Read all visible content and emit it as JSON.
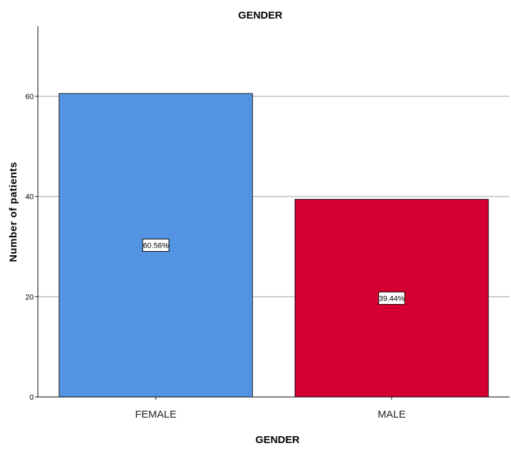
{
  "chart_data": {
    "type": "bar",
    "title": "GENDER",
    "xlabel": "GENDER",
    "ylabel": "Number of patients",
    "categories": [
      "FEMALE",
      "MALE"
    ],
    "values": [
      60.56,
      39.44
    ],
    "data_labels": [
      "60.56%",
      "39.44%"
    ],
    "colors": [
      "#5294e2",
      "#d50032"
    ],
    "ylim": [
      0,
      74
    ],
    "yticks": [
      0,
      20,
      40,
      60
    ],
    "grid": true,
    "legend": "none"
  }
}
